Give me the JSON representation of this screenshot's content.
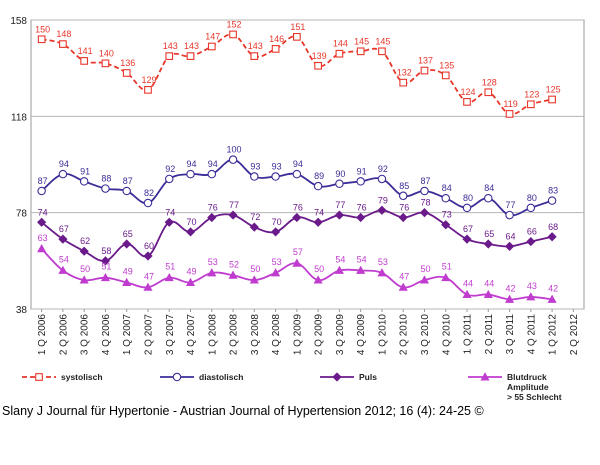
{
  "chart_data": {
    "type": "line",
    "title": "",
    "xlabel": "",
    "ylabel": "",
    "ylim": [
      38,
      158
    ],
    "yticks": [
      38,
      78,
      118,
      158
    ],
    "grid": "horizontal",
    "categories": [
      "1 Q 2006",
      "2 Q 2006",
      "3 Q 2006",
      "4 Q 2006",
      "1 Q 2007",
      "2 Q 2007",
      "3 Q 2007",
      "4 Q 2007",
      "1 Q 2008",
      "2 Q 2008",
      "3 Q 2008",
      "4 Q 2008",
      "1 Q 2009",
      "2 Q 2009",
      "3 Q 2009",
      "4 Q 2009",
      "1 Q 2010",
      "2 Q 2010",
      "3 Q 2010",
      "4 Q 2010",
      "1 Q 2011",
      "2 Q 2011",
      "3 Q 2011",
      "4 Q 2011",
      "1 Q 2012",
      "2 Q 2012"
    ],
    "series": [
      {
        "name": "systolisch",
        "color": "#e8362a",
        "marker": "square-open",
        "dashed": true,
        "values": [
          150,
          148,
          141,
          140,
          136,
          129,
          143,
          143,
          147,
          152,
          143,
          146,
          151,
          139,
          144,
          145,
          145,
          132,
          137,
          135,
          124,
          128,
          119,
          123,
          125,
          null
        ],
        "labels": [
          "150",
          "148",
          "141",
          "140",
          "136",
          "129",
          "143",
          "143",
          "147",
          "152",
          "143",
          "146",
          "151",
          "139",
          "144",
          "145",
          "145",
          "132",
          "137",
          "135",
          "124",
          "128",
          "119",
          "123",
          "125",
          ""
        ]
      },
      {
        "name": "diastolisch",
        "color": "#3a2d97",
        "marker": "circle-open",
        "dashed": false,
        "values": [
          87,
          94,
          91,
          88,
          87,
          82,
          92,
          94,
          94,
          100,
          93,
          93,
          94,
          89,
          90,
          91,
          92,
          85,
          87,
          84,
          80,
          84,
          77,
          80,
          83,
          null
        ],
        "labels": [
          "87",
          "94",
          "91",
          "88",
          "87",
          "82",
          "92",
          "94",
          "94",
          "100",
          "93",
          "93",
          "94",
          "89",
          "90",
          "91",
          "92",
          "85",
          "87",
          "84",
          "80",
          "84",
          "77",
          "80",
          "83",
          ""
        ]
      },
      {
        "name": "Puls",
        "color": "#6a1a8a",
        "marker": "diamond",
        "dashed": false,
        "values": [
          74,
          67,
          62,
          58,
          65,
          60,
          74,
          70,
          76,
          77,
          72,
          70,
          76,
          74,
          77,
          76,
          79,
          76,
          78,
          73,
          67,
          65,
          64,
          66,
          68,
          null
        ],
        "labels": [
          "74",
          "67",
          "62",
          "58",
          "65",
          "60",
          "74",
          "70",
          "76",
          "77",
          "72",
          "70",
          "76",
          "74",
          "77",
          "76",
          "79",
          "76",
          "78",
          "73",
          "67",
          "65",
          "64",
          "66",
          "68",
          ""
        ]
      },
      {
        "name": "Blutdruck Amplitude > 55 Schlecht",
        "color": "#c03ccf",
        "marker": "triangle",
        "dashed": false,
        "values": [
          63,
          54,
          50,
          51,
          49,
          47,
          51,
          49,
          53,
          52,
          50,
          53,
          57,
          50,
          54,
          54,
          53,
          47,
          50,
          51,
          44,
          44,
          42,
          43,
          42,
          null
        ],
        "labels": [
          "63",
          "54",
          "50",
          "51",
          "49",
          "47",
          "51",
          "49",
          "53",
          "52",
          "50",
          "53",
          "57",
          "50",
          "54",
          "54",
          "53",
          "47",
          "50",
          "51",
          "44",
          "44",
          "42",
          "43",
          "42",
          ""
        ]
      }
    ],
    "legend": {
      "placement": "bottom",
      "entries": [
        {
          "label": "systolisch"
        },
        {
          "label": "diastolisch"
        },
        {
          "label": "Puls"
        },
        {
          "label": "Blutdruck Amplitude > 55 Schlecht",
          "lines": [
            "Blutdruck",
            "Amplitude",
            "> 55 Schlecht"
          ]
        }
      ]
    }
  },
  "footer": {
    "credit": "Slany J Journal für Hypertonie - Austrian Journal of Hypertension 2012; 16 (4): 24-25 ©"
  }
}
